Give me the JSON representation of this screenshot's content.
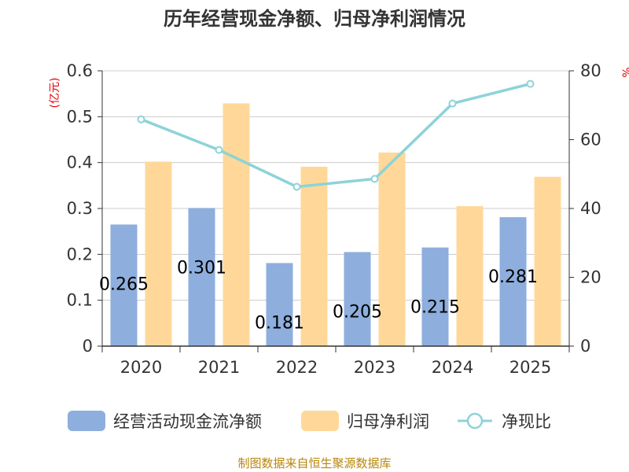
{
  "chart_data": {
    "type": "bar",
    "title": "历年经营现金净额、归母净利润情况",
    "categories": [
      "2020",
      "2021",
      "2022",
      "2023",
      "2024",
      "2025"
    ],
    "series": [
      {
        "name": "经营活动现金流净额",
        "kind": "bar",
        "axis": "left",
        "color": "#8eaedd",
        "values": [
          0.265,
          0.301,
          0.181,
          0.205,
          0.215,
          0.281
        ],
        "labels": [
          "0.265",
          "0.301",
          "0.181",
          "0.205",
          "0.215",
          "0.281"
        ]
      },
      {
        "name": "归母净利润",
        "kind": "bar",
        "axis": "left",
        "color": "#ffd899",
        "values": [
          0.402,
          0.529,
          0.391,
          0.422,
          0.305,
          0.369
        ]
      },
      {
        "name": "净现比",
        "kind": "line",
        "axis": "right",
        "color": "#8dd3d8",
        "values": [
          65.9,
          57.0,
          46.3,
          48.6,
          70.5,
          76.2
        ]
      }
    ],
    "y_left": {
      "label": "(亿元)",
      "range": [
        0,
        0.6
      ],
      "ticks": [
        "0",
        "0.1",
        "0.2",
        "0.3",
        "0.4",
        "0.5",
        "0.6"
      ]
    },
    "y_right": {
      "label": "%",
      "range": [
        0,
        80
      ],
      "ticks": [
        "0",
        "20",
        "40",
        "60",
        "80"
      ]
    },
    "legend_position": "bottom",
    "grid": true,
    "source": "制图数据来自恒生聚源数据库"
  }
}
